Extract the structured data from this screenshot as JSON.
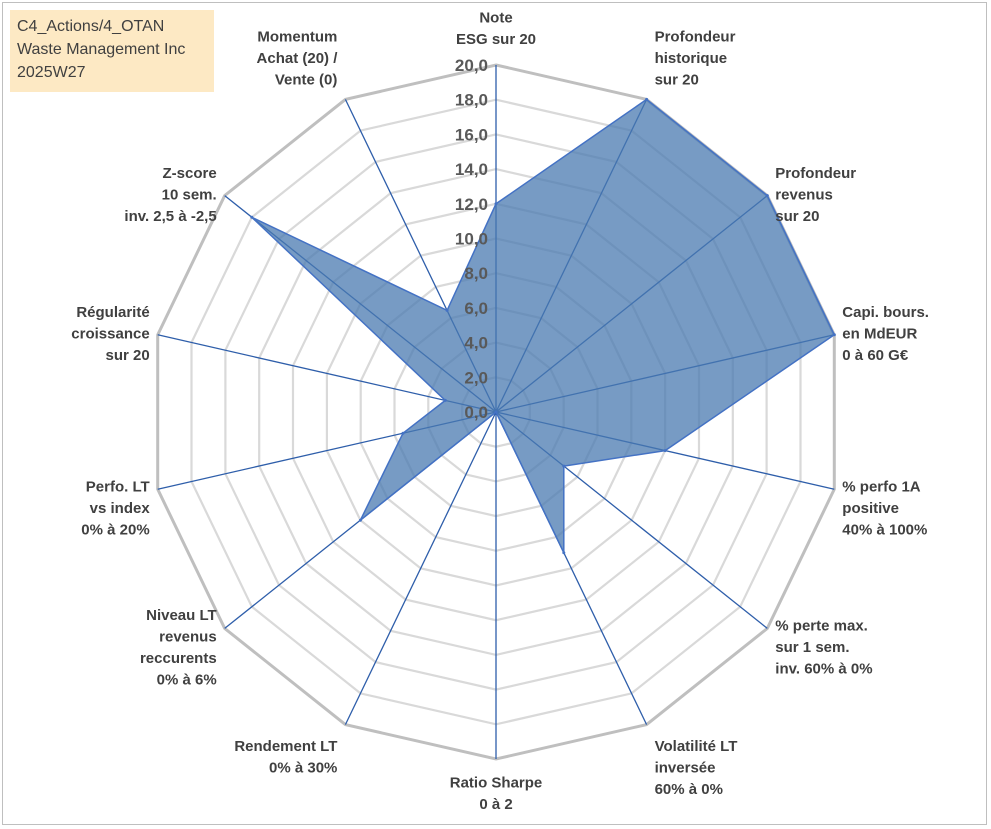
{
  "info": {
    "line1": "C4_Actions/4_OTAN",
    "line2": "Waste Management Inc",
    "line3": "2025W27"
  },
  "chart_data": {
    "type": "radar",
    "rmin": 0,
    "rmax": 20,
    "tick_step": 2,
    "ticks": [
      "0,0",
      "2,0",
      "4,0",
      "6,0",
      "8,0",
      "10,0",
      "12,0",
      "14,0",
      "16,0",
      "18,0",
      "20,0"
    ],
    "axes": [
      {
        "label": [
          "Note",
          "ESG sur 20"
        ],
        "value": 12
      },
      {
        "label": [
          "Profondeur",
          "historique",
          "sur 20"
        ],
        "value": 20
      },
      {
        "label": [
          "Profondeur",
          "revenus",
          "sur 20"
        ],
        "value": 20
      },
      {
        "label": [
          "Capi. bours.",
          "en MdEUR",
          "0 à 60 G€"
        ],
        "value": 20
      },
      {
        "label": [
          "% perfo 1A",
          "positive",
          "40% à 100%"
        ],
        "value": 10
      },
      {
        "label": [
          "% perte max.",
          "sur 1 sem.",
          "inv. 60% à 0%"
        ],
        "value": 5
      },
      {
        "label": [
          "Volatilité LT",
          "inversée",
          "60% à 0%"
        ],
        "value": 9
      },
      {
        "label": [
          "Ratio Sharpe",
          "0 à 2"
        ],
        "value": 0
      },
      {
        "label": [
          "Rendement LT",
          "0% à 30%"
        ],
        "value": 0
      },
      {
        "label": [
          "Niveau LT",
          "revenus",
          "reccurents",
          "0% à 6%"
        ],
        "value": 10
      },
      {
        "label": [
          "Perfo. LT",
          "vs index",
          "0% à 20%"
        ],
        "value": 5.5
      },
      {
        "label": [
          "Régularité",
          "croissance",
          "sur 20"
        ],
        "value": 3
      },
      {
        "label": [
          "Z-score",
          "10 sem.",
          "inv. 2,5 à -2,5"
        ],
        "value": 18
      },
      {
        "label": [
          "Momentum",
          "Achat (20) /",
          "Vente (0)"
        ],
        "value": 6.5
      }
    ],
    "colors": {
      "fill": "#4a7ab0",
      "fill_opacity": 0.75,
      "series_line": "#4472c4",
      "grid_outer": "#bfbfbf",
      "grid_inner": "#d9d9d9",
      "spoke": "#2e5eaa"
    }
  }
}
